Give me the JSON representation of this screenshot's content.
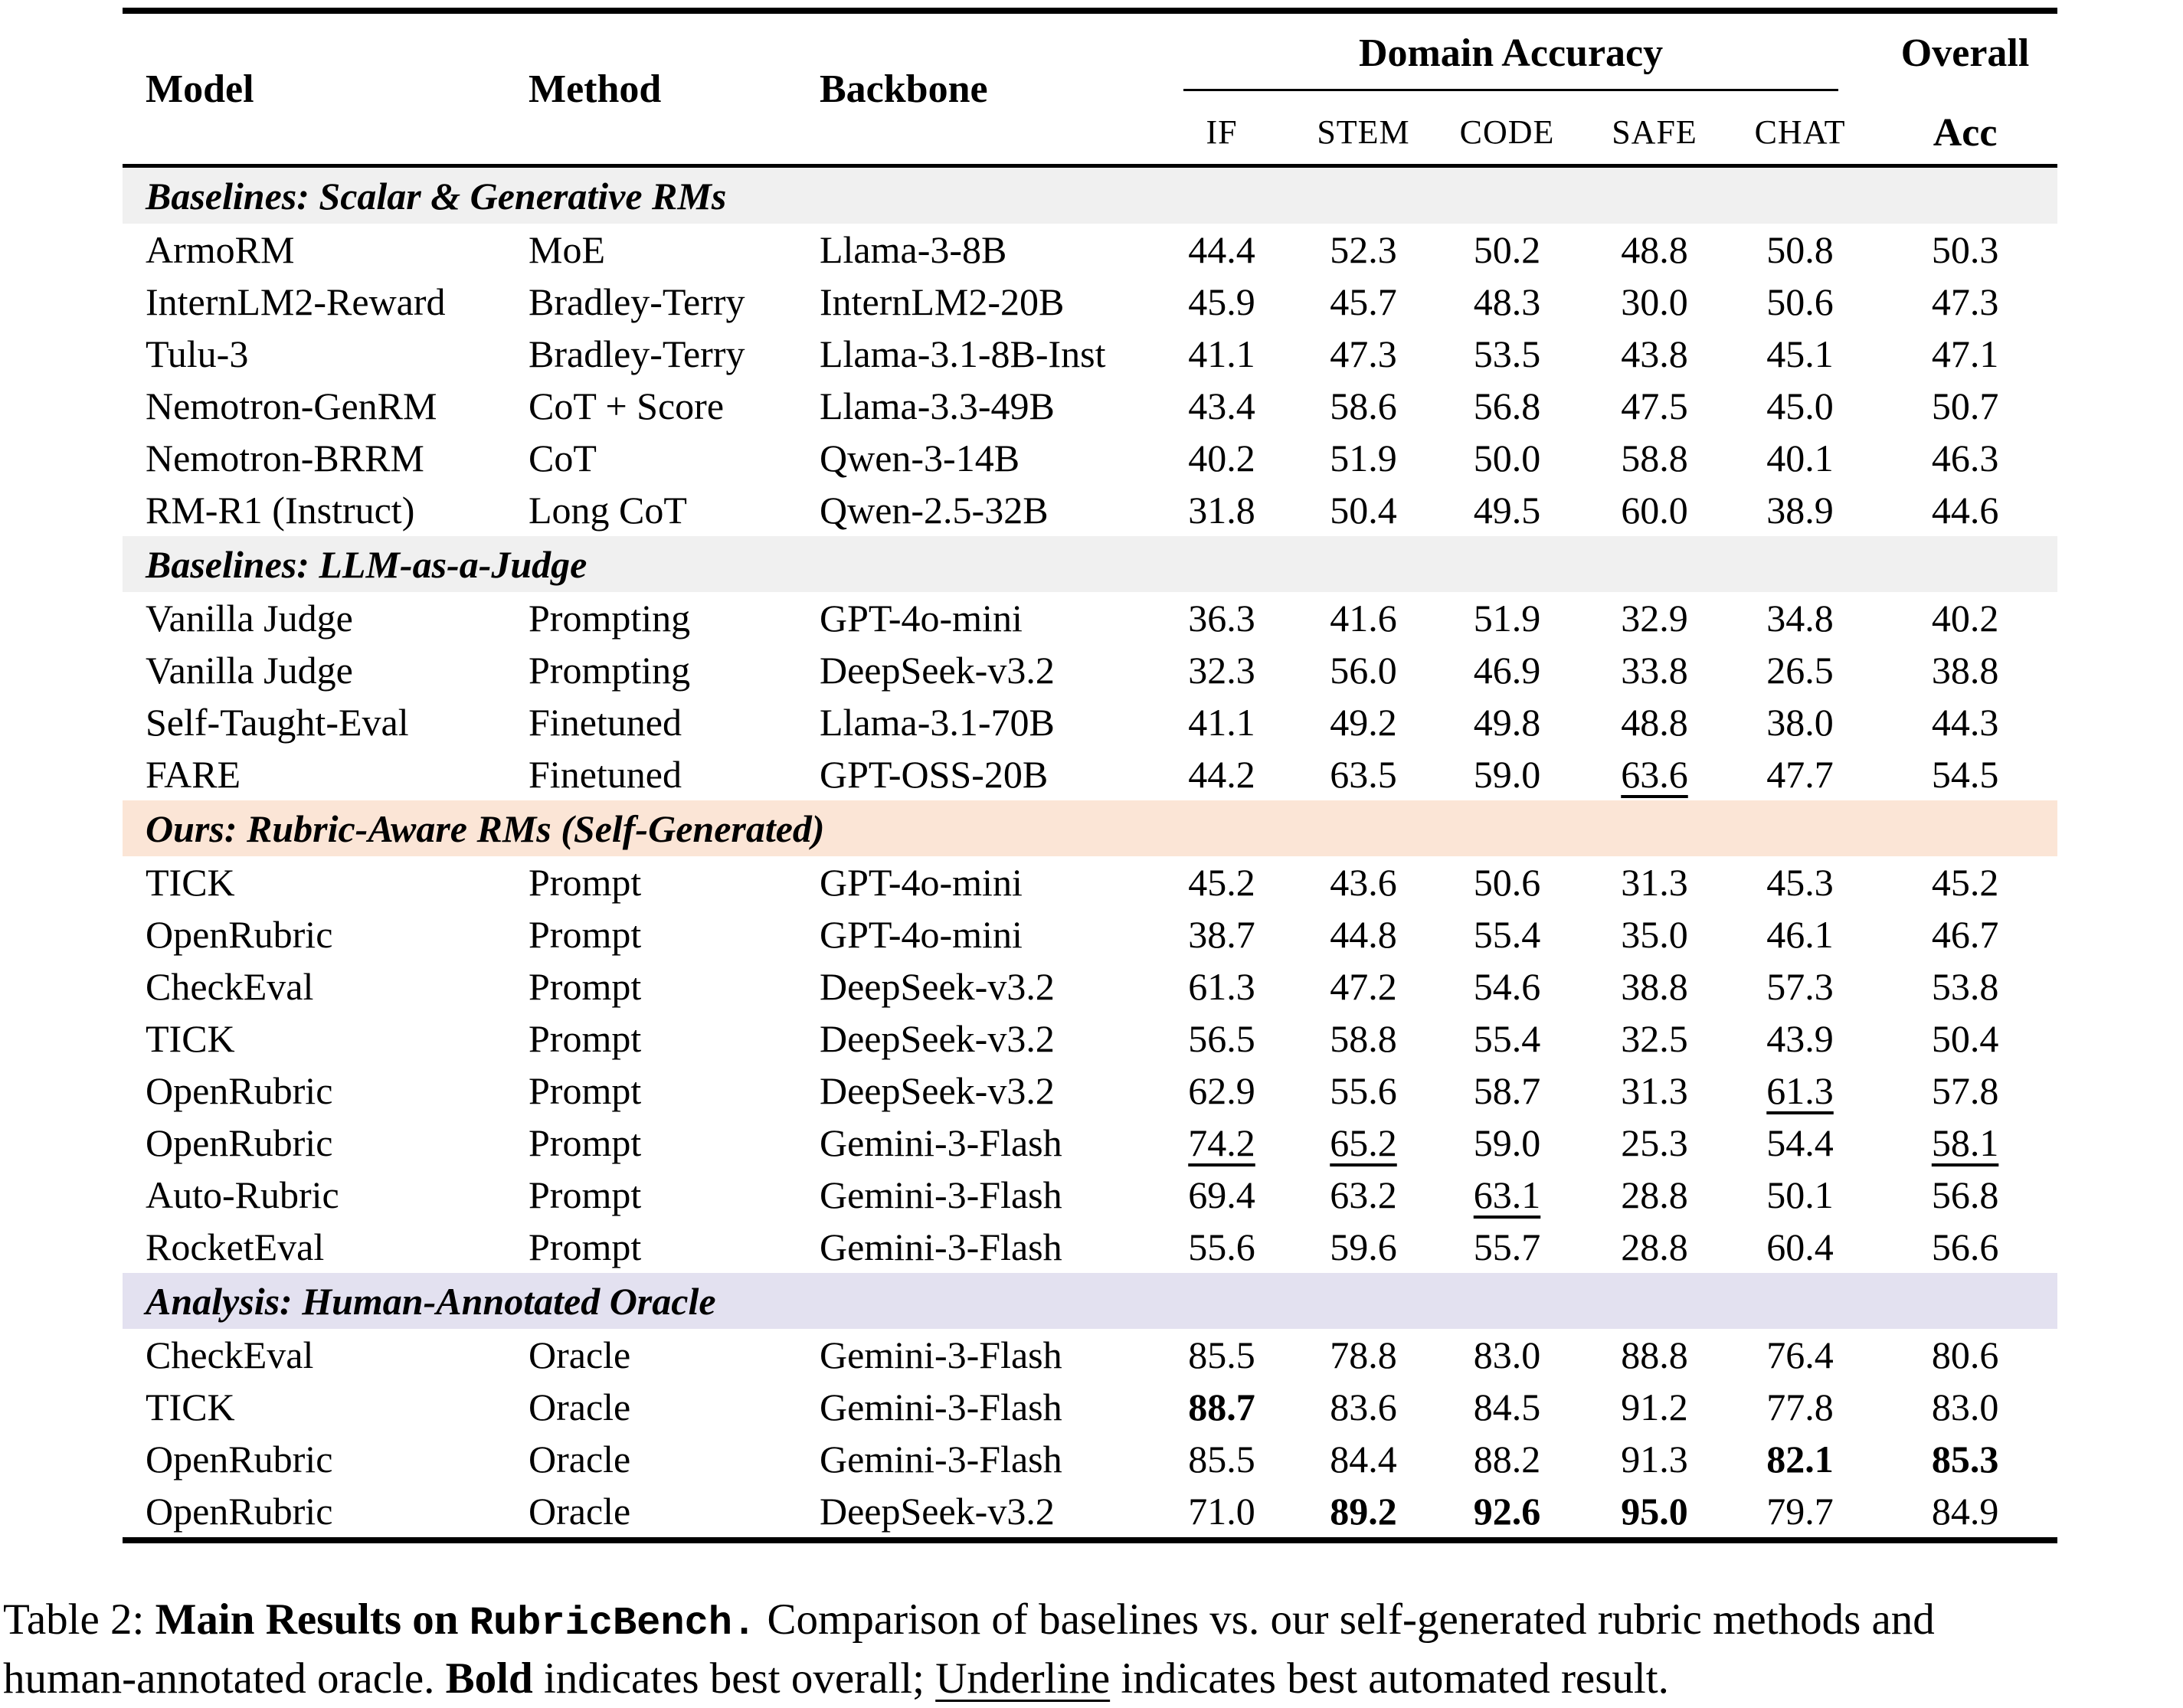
{
  "table": {
    "header": {
      "model": "Model",
      "method": "Method",
      "backbone": "Backbone",
      "domain_accuracy": "Domain Accuracy",
      "domain_columns": [
        "IF",
        "STEM",
        "CODE",
        "SAFE",
        "CHAT"
      ],
      "overall_line1": "Overall",
      "overall_line2": "Acc"
    },
    "sections": [
      {
        "label": "Baselines: Scalar & Generative RMs",
        "bg_color": "#f0f0f0",
        "rows": [
          {
            "model": "ArmoRM",
            "method": "MoE",
            "backbone": "Llama-3-8B",
            "domain_values": [
              {
                "v": "44.4"
              },
              {
                "v": "52.3"
              },
              {
                "v": "50.2"
              },
              {
                "v": "48.8"
              },
              {
                "v": "50.8"
              }
            ],
            "overall": {
              "v": "50.3"
            }
          },
          {
            "model": "InternLM2-Reward",
            "method": "Bradley-Terry",
            "backbone": "InternLM2-20B",
            "domain_values": [
              {
                "v": "45.9"
              },
              {
                "v": "45.7"
              },
              {
                "v": "48.3"
              },
              {
                "v": "30.0"
              },
              {
                "v": "50.6"
              }
            ],
            "overall": {
              "v": "47.3"
            }
          },
          {
            "model": "Tulu-3",
            "method": "Bradley-Terry",
            "backbone": "Llama-3.1-8B-Inst",
            "domain_values": [
              {
                "v": "41.1"
              },
              {
                "v": "47.3"
              },
              {
                "v": "53.5"
              },
              {
                "v": "43.8"
              },
              {
                "v": "45.1"
              }
            ],
            "overall": {
              "v": "47.1"
            }
          },
          {
            "model": "Nemotron-GenRM",
            "method": "CoT + Score",
            "backbone": "Llama-3.3-49B",
            "domain_values": [
              {
                "v": "43.4"
              },
              {
                "v": "58.6"
              },
              {
                "v": "56.8"
              },
              {
                "v": "47.5"
              },
              {
                "v": "45.0"
              }
            ],
            "overall": {
              "v": "50.7"
            }
          },
          {
            "model": "Nemotron-BRRM",
            "method": "CoT",
            "backbone": "Qwen-3-14B",
            "domain_values": [
              {
                "v": "40.2"
              },
              {
                "v": "51.9"
              },
              {
                "v": "50.0"
              },
              {
                "v": "58.8"
              },
              {
                "v": "40.1"
              }
            ],
            "overall": {
              "v": "46.3"
            }
          },
          {
            "model": "RM-R1 (Instruct)",
            "method": "Long CoT",
            "backbone": "Qwen-2.5-32B",
            "domain_values": [
              {
                "v": "31.8"
              },
              {
                "v": "50.4"
              },
              {
                "v": "49.5"
              },
              {
                "v": "60.0"
              },
              {
                "v": "38.9"
              }
            ],
            "overall": {
              "v": "44.6"
            }
          }
        ]
      },
      {
        "label": "Baselines: LLM-as-a-Judge",
        "bg_color": "#f0f0f0",
        "rows": [
          {
            "model": "Vanilla Judge",
            "method": "Prompting",
            "backbone": "GPT-4o-mini",
            "domain_values": [
              {
                "v": "36.3"
              },
              {
                "v": "41.6"
              },
              {
                "v": "51.9"
              },
              {
                "v": "32.9"
              },
              {
                "v": "34.8"
              }
            ],
            "overall": {
              "v": "40.2"
            }
          },
          {
            "model": "Vanilla Judge",
            "method": "Prompting",
            "backbone": "DeepSeek-v3.2",
            "domain_values": [
              {
                "v": "32.3"
              },
              {
                "v": "56.0"
              },
              {
                "v": "46.9"
              },
              {
                "v": "33.8"
              },
              {
                "v": "26.5"
              }
            ],
            "overall": {
              "v": "38.8"
            }
          },
          {
            "model": "Self-Taught-Eval",
            "method": "Finetuned",
            "backbone": "Llama-3.1-70B",
            "domain_values": [
              {
                "v": "41.1"
              },
              {
                "v": "49.2"
              },
              {
                "v": "49.8"
              },
              {
                "v": "48.8"
              },
              {
                "v": "38.0"
              }
            ],
            "overall": {
              "v": "44.3"
            }
          },
          {
            "model": "FARE",
            "method": "Finetuned",
            "backbone": "GPT-OSS-20B",
            "domain_values": [
              {
                "v": "44.2"
              },
              {
                "v": "63.5"
              },
              {
                "v": "59.0"
              },
              {
                "v": "63.6",
                "style": "underline"
              },
              {
                "v": "47.7"
              }
            ],
            "overall": {
              "v": "54.5"
            }
          }
        ]
      },
      {
        "label": "Ours: Rubric-Aware RMs (Self-Generated)",
        "bg_color": "#fbe5d6",
        "rows": [
          {
            "model": "TICK",
            "method": "Prompt",
            "backbone": "GPT-4o-mini",
            "domain_values": [
              {
                "v": "45.2"
              },
              {
                "v": "43.6"
              },
              {
                "v": "50.6"
              },
              {
                "v": "31.3"
              },
              {
                "v": "45.3"
              }
            ],
            "overall": {
              "v": "45.2"
            }
          },
          {
            "model": "OpenRubric",
            "method": "Prompt",
            "backbone": "GPT-4o-mini",
            "domain_values": [
              {
                "v": "38.7"
              },
              {
                "v": "44.8"
              },
              {
                "v": "55.4"
              },
              {
                "v": "35.0"
              },
              {
                "v": "46.1"
              }
            ],
            "overall": {
              "v": "46.7"
            }
          },
          {
            "model": "CheckEval",
            "method": "Prompt",
            "backbone": "DeepSeek-v3.2",
            "domain_values": [
              {
                "v": "61.3"
              },
              {
                "v": "47.2"
              },
              {
                "v": "54.6"
              },
              {
                "v": "38.8"
              },
              {
                "v": "57.3"
              }
            ],
            "overall": {
              "v": "53.8"
            }
          },
          {
            "model": "TICK",
            "method": "Prompt",
            "backbone": "DeepSeek-v3.2",
            "domain_values": [
              {
                "v": "56.5"
              },
              {
                "v": "58.8"
              },
              {
                "v": "55.4"
              },
              {
                "v": "32.5"
              },
              {
                "v": "43.9"
              }
            ],
            "overall": {
              "v": "50.4"
            }
          },
          {
            "model": "OpenRubric",
            "method": "Prompt",
            "backbone": "DeepSeek-v3.2",
            "domain_values": [
              {
                "v": "62.9"
              },
              {
                "v": "55.6"
              },
              {
                "v": "58.7"
              },
              {
                "v": "31.3"
              },
              {
                "v": "61.3",
                "style": "underline"
              }
            ],
            "overall": {
              "v": "57.8"
            }
          },
          {
            "model": "OpenRubric",
            "method": "Prompt",
            "backbone": "Gemini-3-Flash",
            "domain_values": [
              {
                "v": "74.2",
                "style": "underline"
              },
              {
                "v": "65.2",
                "style": "underline"
              },
              {
                "v": "59.0"
              },
              {
                "v": "25.3"
              },
              {
                "v": "54.4"
              }
            ],
            "overall": {
              "v": "58.1",
              "style": "underline"
            }
          },
          {
            "model": "Auto-Rubric",
            "method": "Prompt",
            "backbone": "Gemini-3-Flash",
            "domain_values": [
              {
                "v": "69.4"
              },
              {
                "v": "63.2"
              },
              {
                "v": "63.1",
                "style": "underline"
              },
              {
                "v": "28.8"
              },
              {
                "v": "50.1"
              }
            ],
            "overall": {
              "v": "56.8"
            }
          },
          {
            "model": "RocketEval",
            "method": "Prompt",
            "backbone": "Gemini-3-Flash",
            "domain_values": [
              {
                "v": "55.6"
              },
              {
                "v": "59.6"
              },
              {
                "v": "55.7"
              },
              {
                "v": "28.8"
              },
              {
                "v": "60.4"
              }
            ],
            "overall": {
              "v": "56.6"
            }
          }
        ]
      },
      {
        "label": "Analysis: Human-Annotated Oracle",
        "bg_color": "#e3e1f0",
        "rows": [
          {
            "model": "CheckEval",
            "method": "Oracle",
            "backbone": "Gemini-3-Flash",
            "domain_values": [
              {
                "v": "85.5"
              },
              {
                "v": "78.8"
              },
              {
                "v": "83.0"
              },
              {
                "v": "88.8"
              },
              {
                "v": "76.4"
              }
            ],
            "overall": {
              "v": "80.6"
            }
          },
          {
            "model": "TICK",
            "method": "Oracle",
            "backbone": "Gemini-3-Flash",
            "domain_values": [
              {
                "v": "88.7",
                "style": "bold"
              },
              {
                "v": "83.6"
              },
              {
                "v": "84.5"
              },
              {
                "v": "91.2"
              },
              {
                "v": "77.8"
              }
            ],
            "overall": {
              "v": "83.0"
            }
          },
          {
            "model": "OpenRubric",
            "method": "Oracle",
            "backbone": "Gemini-3-Flash",
            "domain_values": [
              {
                "v": "85.5"
              },
              {
                "v": "84.4"
              },
              {
                "v": "88.2"
              },
              {
                "v": "91.3"
              },
              {
                "v": "82.1",
                "style": "bold"
              }
            ],
            "overall": {
              "v": "85.3",
              "style": "bold"
            }
          },
          {
            "model": "OpenRubric",
            "method": "Oracle",
            "backbone": "DeepSeek-v3.2",
            "domain_values": [
              {
                "v": "71.0"
              },
              {
                "v": "89.2",
                "style": "bold"
              },
              {
                "v": "92.6",
                "style": "bold"
              },
              {
                "v": "95.0",
                "style": "bold"
              },
              {
                "v": "79.7"
              }
            ],
            "overall": {
              "v": "84.9"
            }
          }
        ]
      }
    ]
  },
  "caption": {
    "segments": [
      {
        "text": "Table 2: "
      },
      {
        "text": "Main Results on ",
        "bold": true
      },
      {
        "text": "RubricBench.",
        "bold": true,
        "mono": true
      },
      {
        "text": " Comparison of baselines vs. our self-generated rubric methods and"
      },
      {
        "br": true
      },
      {
        "text": "human-annotated oracle. "
      },
      {
        "text": "Bold",
        "bold": true
      },
      {
        "text": " indicates best overall; "
      },
      {
        "text": "Underline",
        "underline": true
      },
      {
        "text": " indicates best automated result."
      }
    ]
  }
}
